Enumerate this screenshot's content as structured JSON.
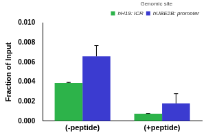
{
  "chart_data": {
    "type": "bar",
    "y_label": "Fraction of Input",
    "legend_title": "Genomic site",
    "legend": "upper right",
    "grid": false,
    "categories": [
      "(-peptide)",
      "(+peptide)"
    ],
    "series": [
      {
        "name": "hH19: ICR",
        "color": "#2db34a",
        "values": [
          0.0039,
          0.00075
        ],
        "error": [
          5e-05,
          3e-05
        ]
      },
      {
        "name": "hUBE2B: promoter",
        "color": "#3b3bd0",
        "values": [
          0.0066,
          0.0018
        ],
        "error": [
          0.0011,
          0.001
        ]
      }
    ],
    "ylim": [
      0,
      0.01
    ],
    "yticks": [
      {
        "value": 0,
        "label": "0.000"
      },
      {
        "value": 0.002,
        "label": "0.002"
      },
      {
        "value": 0.004,
        "label": "0.004"
      },
      {
        "value": 0.006,
        "label": "0.006"
      },
      {
        "value": 0.008,
        "label": "0.008"
      },
      {
        "value": 0.01,
        "label": "0.010"
      }
    ]
  }
}
